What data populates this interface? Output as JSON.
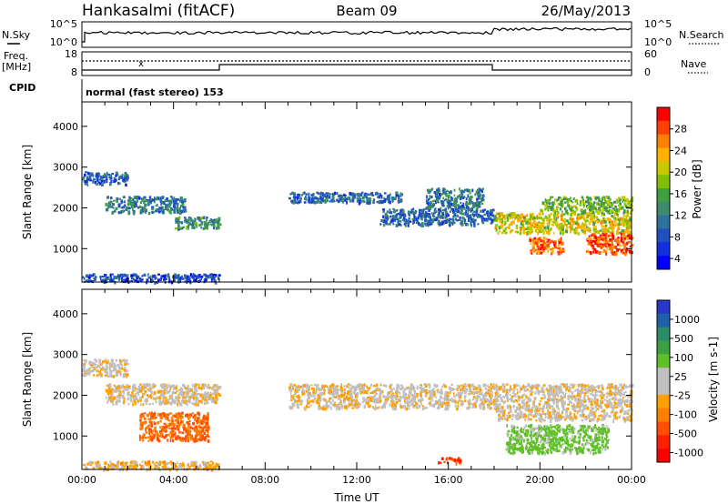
{
  "header": {
    "station": "Hankasalmi (fitACF)",
    "beam": "Beam 09",
    "date": "26/May/2013"
  },
  "strips": {
    "nsky_label": "N.Sky",
    "nsearch_label": "N.Search",
    "freq_label_1": "Freq.",
    "freq_label_2": "[MHz]",
    "nave_label": "Nave",
    "cpid_label": "CPID",
    "cpid_value": "normal (fast stereo) 153",
    "noise_ticks_left": [
      "10^5",
      "10^0"
    ],
    "noise_ticks_right": [
      "10^5",
      "10^0"
    ],
    "freq_ticks": [
      "18",
      "8"
    ],
    "nave_ticks": [
      "60",
      "0"
    ]
  },
  "colorbars": {
    "power": {
      "label": "Power [dB]",
      "ticks": [
        "28",
        "24",
        "20",
        "16",
        "12",
        "8",
        "4"
      ],
      "colors": [
        "#ff0000",
        "#ff4000",
        "#ff8000",
        "#ffb000",
        "#c8c800",
        "#80c000",
        "#40a040",
        "#3c8c6c",
        "#30709c",
        "#2050c0",
        "#1030e0",
        "#0000ff"
      ]
    },
    "velocity": {
      "label": "Velocity [m s-1]",
      "ticks": [
        "1000",
        "500",
        "100",
        "25",
        "-25",
        "-100",
        "-500",
        "-1000"
      ],
      "colors": [
        "#2838c8",
        "#2060a8",
        "#2c8c68",
        "#3ca040",
        "#60c028",
        "#c0c0c0",
        "#c0c0c0",
        "#ffa000",
        "#ff8000",
        "#ff5000",
        "#ff2000",
        "#ff0000"
      ]
    }
  },
  "chart_data": [
    {
      "type": "heatmap",
      "panel": "power",
      "ylabel": "Slant Range [km]",
      "xlim": [
        "00:00",
        "24:00"
      ],
      "ylim": [
        180,
        4600
      ],
      "y_ticks": [
        1000,
        2000,
        3000,
        4000
      ],
      "x_ticks": [
        "00:00",
        "04:00",
        "08:00",
        "12:00",
        "16:00",
        "20:00",
        "00:00"
      ],
      "colorbar": "Power [dB]",
      "clim": [
        0,
        32
      ],
      "regions": [
        {
          "t_start": 0.0,
          "t_end": 2.0,
          "r_start": 2600,
          "r_end": 2900,
          "value": 8
        },
        {
          "t_start": 1.0,
          "t_end": 4.5,
          "r_start": 1900,
          "r_end": 2300,
          "value": 10
        },
        {
          "t_start": 4.0,
          "t_end": 6.0,
          "r_start": 1500,
          "r_end": 1800,
          "value": 12
        },
        {
          "t_start": 9.0,
          "t_end": 14.0,
          "r_start": 2150,
          "r_end": 2400,
          "value": 8
        },
        {
          "t_start": 13.0,
          "t_end": 18.0,
          "r_start": 1600,
          "r_end": 2000,
          "value": 8
        },
        {
          "t_start": 15.0,
          "t_end": 17.5,
          "r_start": 2000,
          "r_end": 2500,
          "value": 10
        },
        {
          "t_start": 18.0,
          "t_end": 24.0,
          "r_start": 1400,
          "r_end": 1900,
          "value": 20
        },
        {
          "t_start": 20.0,
          "t_end": 24.0,
          "r_start": 1900,
          "r_end": 2300,
          "value": 16
        },
        {
          "t_start": 19.5,
          "t_end": 21.0,
          "r_start": 900,
          "r_end": 1300,
          "value": 26
        },
        {
          "t_start": 22.0,
          "t_end": 24.0,
          "r_start": 900,
          "r_end": 1400,
          "value": 28
        },
        {
          "t_start": 0.0,
          "t_end": 6.0,
          "r_start": 200,
          "r_end": 400,
          "value": 6
        }
      ]
    },
    {
      "type": "heatmap",
      "panel": "velocity",
      "ylabel": "Slant Range [km]",
      "xlabel": "Time UT",
      "xlim": [
        "00:00",
        "24:00"
      ],
      "ylim": [
        180,
        4600
      ],
      "y_ticks": [
        1000,
        2000,
        3000,
        4000
      ],
      "x_ticks": [
        "00:00",
        "04:00",
        "08:00",
        "12:00",
        "16:00",
        "20:00",
        "00:00"
      ],
      "colorbar": "Velocity [m s-1]",
      "clim": [
        -1000,
        1000
      ],
      "regions": [
        {
          "t_start": 0.0,
          "t_end": 2.0,
          "r_start": 2500,
          "r_end": 2900,
          "value": 0
        },
        {
          "t_start": 1.0,
          "t_end": 6.0,
          "r_start": 1800,
          "r_end": 2300,
          "value": 0
        },
        {
          "t_start": 2.5,
          "t_end": 5.5,
          "r_start": 900,
          "r_end": 1600,
          "value": -300
        },
        {
          "t_start": 9.0,
          "t_end": 18.0,
          "r_start": 1700,
          "r_end": 2300,
          "value": 0
        },
        {
          "t_start": 15.5,
          "t_end": 16.5,
          "r_start": 350,
          "r_end": 500,
          "value": -500
        },
        {
          "t_start": 18.0,
          "t_end": 24.0,
          "r_start": 1400,
          "r_end": 2300,
          "value": 0
        },
        {
          "t_start": 18.5,
          "t_end": 23.0,
          "r_start": 600,
          "r_end": 1300,
          "value": 150
        },
        {
          "t_start": 0.0,
          "t_end": 6.0,
          "r_start": 200,
          "r_end": 400,
          "value": -50
        }
      ]
    }
  ]
}
